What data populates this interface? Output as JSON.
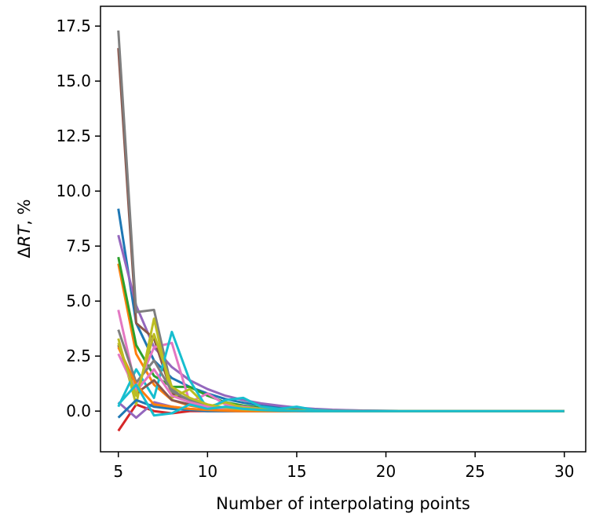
{
  "chart_data": {
    "type": "line",
    "xlabel": "Number of interpolating points",
    "ylabel_prefix": "Δ",
    "ylabel_symbol": "RT",
    "ylabel_suffix": ", %",
    "xlim": [
      4.0,
      31.2
    ],
    "ylim": [
      -1.85,
      18.4
    ],
    "x_ticks": [
      5,
      10,
      15,
      20,
      25,
      30
    ],
    "x_tick_labels": [
      "5",
      "10",
      "15",
      "20",
      "25",
      "30"
    ],
    "y_ticks": [
      0.0,
      2.5,
      5.0,
      7.5,
      10.0,
      12.5,
      15.0,
      17.5
    ],
    "y_tick_labels": [
      "0.0",
      "2.5",
      "5.0",
      "7.5",
      "10.0",
      "12.5",
      "15.0",
      "17.5"
    ],
    "grid": false,
    "legend": "none",
    "series": [
      {
        "color": "#1f77b4",
        "x": [
          5,
          6,
          7,
          8,
          9,
          10,
          11,
          12,
          13,
          14,
          15,
          16,
          17,
          18,
          19,
          20,
          25,
          30
        ],
        "y": [
          9.2,
          4.0,
          2.3,
          1.5,
          1.1,
          0.8,
          0.55,
          0.38,
          0.25,
          0.16,
          0.1,
          0.06,
          0.04,
          0.03,
          0.02,
          0.01,
          0.0,
          0.0
        ]
      },
      {
        "color": "#ff7f0e",
        "x": [
          5,
          6,
          7,
          8,
          9,
          10,
          11,
          12,
          13,
          14,
          15,
          16,
          17,
          18,
          19,
          20,
          25,
          30
        ],
        "y": [
          6.7,
          2.6,
          1.2,
          0.5,
          0.25,
          0.12,
          0.08,
          0.05,
          0.03,
          0.02,
          0.01,
          0.0,
          0.0,
          0.0,
          0.0,
          0.0,
          0.0,
          0.0
        ]
      },
      {
        "color": "#2ca02c",
        "x": [
          5,
          6,
          7,
          8,
          9,
          10,
          11,
          12,
          13,
          14,
          15,
          16,
          17,
          18,
          19,
          20,
          25,
          30
        ],
        "y": [
          7.0,
          3.0,
          1.6,
          1.1,
          1.1,
          0.7,
          0.4,
          0.25,
          0.15,
          0.1,
          0.06,
          0.04,
          0.02,
          0.01,
          0.0,
          0.0,
          0.0,
          0.0
        ]
      },
      {
        "color": "#d62728",
        "x": [
          5,
          6,
          7,
          8,
          9,
          10,
          11,
          12,
          13,
          14,
          15,
          16,
          17,
          18,
          19,
          20,
          25,
          30
        ],
        "y": [
          -0.9,
          0.3,
          0.0,
          -0.1,
          0.0,
          0.0,
          0.0,
          0.0,
          0.0,
          0.0,
          0.0,
          0.0,
          0.0,
          0.0,
          0.0,
          0.0,
          0.0,
          0.0
        ]
      },
      {
        "color": "#9467bd",
        "x": [
          5,
          6,
          7,
          8,
          9,
          10,
          11,
          12,
          13,
          14,
          15,
          16,
          17,
          18,
          19,
          20,
          25,
          30
        ],
        "y": [
          8.0,
          4.8,
          2.9,
          2.0,
          1.4,
          1.0,
          0.7,
          0.5,
          0.35,
          0.25,
          0.16,
          0.1,
          0.06,
          0.04,
          0.02,
          0.01,
          0.0,
          0.0
        ]
      },
      {
        "color": "#8c564b",
        "x": [
          5,
          6,
          7,
          8,
          9,
          10,
          11,
          12,
          13,
          14,
          15,
          16,
          17,
          18,
          19,
          20,
          25,
          30
        ],
        "y": [
          16.5,
          4.0,
          3.3,
          0.8,
          0.4,
          0.2,
          0.1,
          0.06,
          0.03,
          0.02,
          0.01,
          0.0,
          0.0,
          0.0,
          0.0,
          0.0,
          0.0,
          0.0
        ]
      },
      {
        "color": "#e377c2",
        "x": [
          5,
          6,
          7,
          8,
          9,
          10,
          11,
          12,
          13,
          14,
          15,
          16,
          17,
          18,
          19,
          20,
          25,
          30
        ],
        "y": [
          4.6,
          1.0,
          2.9,
          3.1,
          0.4,
          0.8,
          0.3,
          0.2,
          0.1,
          0.05,
          0.02,
          0.01,
          0.0,
          0.0,
          0.0,
          0.0,
          0.0,
          0.0
        ]
      },
      {
        "color": "#7f7f7f",
        "x": [
          5,
          6,
          7,
          8,
          9,
          10,
          11,
          12,
          13,
          14,
          15,
          16,
          17,
          18,
          19,
          20,
          25,
          30
        ],
        "y": [
          17.3,
          4.5,
          4.6,
          1.0,
          0.4,
          0.2,
          0.1,
          0.06,
          0.03,
          0.02,
          0.01,
          0.0,
          0.0,
          0.0,
          0.0,
          0.0,
          0.0,
          0.0
        ]
      },
      {
        "color": "#bcbd22",
        "x": [
          5,
          6,
          7,
          8,
          9,
          10,
          11,
          12,
          13,
          14,
          15,
          16,
          17,
          18,
          19,
          20,
          25,
          30
        ],
        "y": [
          3.3,
          0.3,
          4.2,
          0.6,
          1.0,
          0.2,
          0.4,
          0.15,
          0.1,
          0.06,
          0.03,
          0.02,
          0.01,
          0.0,
          0.0,
          0.0,
          0.0,
          0.0
        ]
      },
      {
        "color": "#17becf",
        "x": [
          5,
          6,
          7,
          8,
          9,
          10,
          11,
          12,
          13,
          14,
          15,
          16,
          17,
          18,
          19,
          20,
          25,
          30
        ],
        "y": [
          0.2,
          1.9,
          0.6,
          3.6,
          1.4,
          0.1,
          0.5,
          0.6,
          0.2,
          0.1,
          0.2,
          0.05,
          0.02,
          0.01,
          0.0,
          0.0,
          0.0,
          0.0
        ]
      },
      {
        "color": "#8c564b",
        "x": [
          5,
          6,
          7,
          8,
          9,
          10,
          11,
          12,
          13,
          14,
          15,
          16,
          17,
          18,
          19,
          20,
          25,
          30
        ],
        "y": [
          3.0,
          0.8,
          1.4,
          0.5,
          0.3,
          0.15,
          0.08,
          0.04,
          0.02,
          0.01,
          0.0,
          0.0,
          0.0,
          0.0,
          0.0,
          0.0,
          0.0,
          0.0
        ]
      },
      {
        "color": "#7f7f7f",
        "x": [
          5,
          6,
          7,
          8,
          9,
          10,
          11,
          12,
          13,
          14,
          15,
          16,
          17,
          18,
          19,
          20,
          25,
          30
        ],
        "y": [
          3.7,
          1.3,
          2.3,
          0.9,
          0.5,
          0.25,
          0.12,
          0.06,
          0.03,
          0.02,
          0.01,
          0.0,
          0.0,
          0.0,
          0.0,
          0.0,
          0.0,
          0.0
        ]
      },
      {
        "color": "#9467bd",
        "x": [
          5,
          6,
          7,
          8,
          9,
          10,
          11,
          12,
          13,
          14,
          15,
          16,
          17,
          18,
          19,
          20,
          25,
          30
        ],
        "y": [
          0.4,
          -0.3,
          0.4,
          0.2,
          0.1,
          0.05,
          0.02,
          0.01,
          0.0,
          0.0,
          0.0,
          0.0,
          0.0,
          0.0,
          0.0,
          0.0,
          0.0,
          0.0
        ]
      },
      {
        "color": "#1f77b4",
        "x": [
          5,
          6,
          7,
          8,
          9,
          10,
          11,
          12,
          13,
          14,
          15,
          16,
          17,
          18,
          19,
          20,
          25,
          30
        ],
        "y": [
          -0.3,
          0.5,
          0.2,
          0.1,
          0.05,
          0.0,
          0.0,
          0.0,
          0.0,
          0.0,
          0.0,
          0.0,
          0.0,
          0.0,
          0.0,
          0.0,
          0.0,
          0.0
        ]
      },
      {
        "color": "#e377c2",
        "x": [
          5,
          6,
          7,
          8,
          9,
          10,
          11,
          12,
          13,
          14,
          15,
          16,
          17,
          18,
          19,
          20,
          25,
          30
        ],
        "y": [
          2.6,
          0.9,
          1.9,
          0.7,
          0.4,
          0.2,
          0.1,
          0.05,
          0.02,
          0.01,
          0.0,
          0.0,
          0.0,
          0.0,
          0.0,
          0.0,
          0.0,
          0.0
        ]
      },
      {
        "color": "#ff7f0e",
        "x": [
          5,
          6,
          7,
          8,
          9,
          10,
          11,
          12,
          13,
          14,
          15,
          16,
          17,
          18,
          19,
          20,
          25,
          30
        ],
        "y": [
          2.9,
          1.2,
          0.3,
          0.2,
          0.1,
          0.05,
          0.02,
          0.0,
          0.0,
          0.0,
          0.0,
          0.0,
          0.0,
          0.0,
          0.0,
          0.0,
          0.0,
          0.0
        ]
      },
      {
        "color": "#bcbd22",
        "x": [
          5,
          6,
          7,
          8,
          9,
          10,
          11,
          12,
          13,
          14,
          15,
          16,
          17,
          18,
          19,
          20,
          25,
          30
        ],
        "y": [
          3.1,
          0.7,
          3.5,
          1.1,
          0.6,
          0.3,
          0.15,
          0.08,
          0.04,
          0.02,
          0.01,
          0.0,
          0.0,
          0.0,
          0.0,
          0.0,
          0.0,
          0.0
        ]
      },
      {
        "color": "#17becf",
        "x": [
          5,
          6,
          7,
          8,
          9,
          10,
          11,
          12,
          13,
          14,
          15,
          16,
          17,
          18,
          19,
          20,
          25,
          30
        ],
        "y": [
          0.3,
          1.2,
          -0.2,
          -0.1,
          0.3,
          0.1,
          0.2,
          0.1,
          0.05,
          0.02,
          0.01,
          0.0,
          0.0,
          0.0,
          0.0,
          0.0,
          0.0,
          0.0
        ]
      }
    ]
  }
}
